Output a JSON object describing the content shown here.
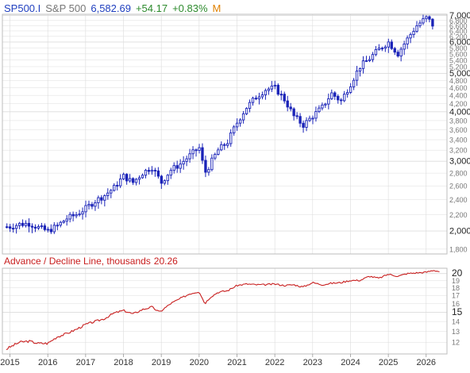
{
  "header": {
    "symbol": "SP500.I",
    "name": "S&P 500",
    "price": "6,582.69",
    "change": "+54.17",
    "change_pct": "+0.83%",
    "period": "M"
  },
  "indicator": {
    "label": "Advance / Decline Line, thousands",
    "value": "20.26"
  },
  "colors": {
    "symbol": "#1f3fbf",
    "name": "#777777",
    "price": "#1f3fbf",
    "positive": "#2e8b2e",
    "period": "#e08000",
    "candle": "#1a23b8",
    "ad_line": "#c81e1e",
    "ad_label": "#c81e1e",
    "grid": "#dcdcdc",
    "frame": "#bdbdbd"
  },
  "chart_data": [
    {
      "type": "candlestick",
      "title": "SP500.I  S&P 500  6,582.69  +54.17  +0.83%  M",
      "x": [
        2015,
        2015.25,
        2015.5,
        2015.75,
        2016,
        2016.25,
        2016.5,
        2016.75,
        2017,
        2017.25,
        2017.5,
        2017.75,
        2018,
        2018.25,
        2018.5,
        2018.75,
        2019,
        2019.25,
        2019.5,
        2019.75,
        2020,
        2020.15,
        2020.25,
        2020.5,
        2020.75,
        2021,
        2021.25,
        2021.5,
        2021.75,
        2022,
        2022.25,
        2022.5,
        2022.75,
        2023,
        2023.25,
        2023.5,
        2023.75,
        2024,
        2024.25,
        2024.5,
        2024.75,
        2025,
        2025.25,
        2025.5,
        2025.75,
        2026,
        2026.25
      ],
      "values": [
        2050,
        2080,
        2090,
        2040,
        2000,
        2060,
        2150,
        2200,
        2280,
        2380,
        2460,
        2570,
        2750,
        2650,
        2800,
        2900,
        2650,
        2850,
        2950,
        3100,
        3250,
        2800,
        2900,
        3200,
        3350,
        3750,
        4100,
        4350,
        4550,
        4600,
        4300,
        3900,
        3700,
        3900,
        4100,
        4450,
        4250,
        4700,
        5200,
        5450,
        5750,
        6000,
        5600,
        6100,
        6600,
        6900,
        6582.69
      ],
      "xlabel": "",
      "ylabel": "",
      "x_ticks": [
        "2015",
        "2016",
        "2017",
        "2018",
        "2019",
        "2020",
        "2021",
        "2022",
        "2023",
        "2024",
        "2025",
        "2026"
      ],
      "y_ticks": [
        "1,800",
        "2,000",
        "2,200",
        "2,400",
        "2,600",
        "2,800",
        "3,000",
        "3,200",
        "3,400",
        "3,600",
        "3,800",
        "4,000",
        "4,200",
        "4,400",
        "4,600",
        "4,800",
        "5,000",
        "5,200",
        "5,400",
        "5,600",
        "5,800",
        "6,000",
        "6,200",
        "6,400",
        "6,600",
        "6,800",
        "7,000"
      ],
      "y_tick_values": [
        1800,
        2000,
        2200,
        2400,
        2600,
        2800,
        3000,
        3200,
        3400,
        3600,
        3800,
        4000,
        4200,
        4400,
        4600,
        4800,
        5000,
        5200,
        5400,
        5600,
        5800,
        6000,
        6200,
        6400,
        6600,
        6800,
        7000
      ],
      "major_y_ticks": [
        2000,
        3000,
        4000,
        5000,
        6000,
        7000
      ],
      "xlim": [
        2014.8,
        2026.55
      ],
      "ylim": [
        1750,
        7050
      ],
      "y_scale": "log",
      "grid": true
    },
    {
      "type": "line",
      "title": "Advance / Decline Line, thousands 20.26",
      "x": [
        2014.9,
        2015.25,
        2015.5,
        2015.75,
        2016,
        2016.25,
        2016.5,
        2016.75,
        2017,
        2017.25,
        2017.5,
        2017.75,
        2018,
        2018.25,
        2018.5,
        2018.75,
        2018.95,
        2019.25,
        2019.5,
        2019.75,
        2020,
        2020.15,
        2020.3,
        2020.5,
        2020.75,
        2021,
        2021.25,
        2021.5,
        2021.75,
        2022,
        2022.25,
        2022.5,
        2022.75,
        2023,
        2023.25,
        2023.5,
        2023.75,
        2024,
        2024.25,
        2024.5,
        2024.75,
        2025,
        2025.25,
        2025.5,
        2025.75,
        2026,
        2026.2,
        2026.35
      ],
      "values": [
        11.4,
        12.0,
        12.1,
        11.9,
        11.9,
        12.5,
        12.8,
        13.2,
        13.7,
        14.0,
        14.3,
        14.9,
        15.2,
        14.8,
        15.3,
        15.6,
        15.0,
        16.0,
        16.6,
        17.2,
        17.5,
        16.0,
        16.8,
        17.4,
        17.6,
        18.3,
        18.5,
        18.4,
        18.4,
        18.5,
        18.3,
        18.4,
        18.1,
        18.7,
        18.4,
        18.6,
        18.7,
        19.0,
        19.0,
        19.6,
        19.3,
        19.9,
        19.6,
        20.0,
        20.1,
        20.2,
        20.5,
        20.26
      ],
      "xlabel": "",
      "ylabel": "",
      "y_ticks": [
        "12",
        "13",
        "14",
        "15",
        "16",
        "17",
        "18",
        "19",
        "20"
      ],
      "y_tick_values": [
        12,
        13,
        14,
        15,
        16,
        17,
        18,
        19,
        20
      ],
      "major_y_ticks": [
        15,
        20
      ],
      "xlim": [
        2014.8,
        2026.55
      ],
      "ylim": [
        11,
        20.8
      ],
      "y_scale": "log",
      "grid": true
    }
  ]
}
